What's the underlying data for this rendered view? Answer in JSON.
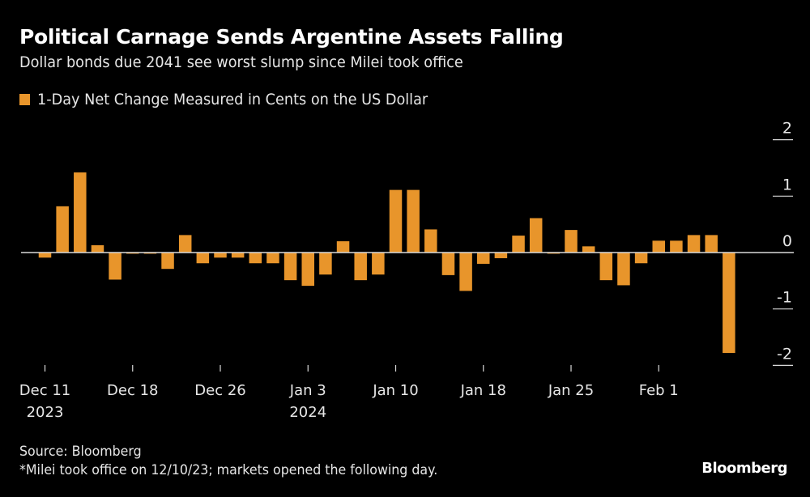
{
  "header": {
    "title": "Political Carnage Sends Argentine Assets Falling",
    "subtitle": "Dollar bonds due 2041 see worst slump since Milei took office"
  },
  "footer": {
    "source": "Source: Bloomberg",
    "note": "*Milei took office on 12/10/23; markets opened the following day.",
    "brand": "Bloomberg"
  },
  "colors": {
    "bar": "#e8952b",
    "background": "#000000",
    "axis": "#d9d9d9",
    "text": "#e6e6e6"
  },
  "chart_data": {
    "type": "bar",
    "title": "Political Carnage Sends Argentine Assets Falling",
    "subtitle": "Dollar bonds due 2041 see worst slump since Milei took office",
    "xlabel": "",
    "ylabel": "",
    "legend": {
      "position": "top-left",
      "entries": [
        "1-Day Net Change Measured in Cents on the US Dollar"
      ]
    },
    "ylim": [
      -2.2,
      2.2
    ],
    "yticks": [
      2,
      1,
      0,
      -1,
      -2
    ],
    "ytick_labels": [
      "2",
      "1",
      "0",
      "-1",
      "-2"
    ],
    "y_axis_side": "right",
    "grid": false,
    "xticks": [
      {
        "index": 0,
        "label": "Dec 11",
        "sublabel": "2023"
      },
      {
        "index": 5,
        "label": "Dec 18",
        "sublabel": ""
      },
      {
        "index": 10,
        "label": "Dec 26",
        "sublabel": ""
      },
      {
        "index": 15,
        "label": "Jan 3",
        "sublabel": "2024"
      },
      {
        "index": 20,
        "label": "Jan 10",
        "sublabel": ""
      },
      {
        "index": 25,
        "label": "Jan 18",
        "sublabel": ""
      },
      {
        "index": 30,
        "label": "Jan 25",
        "sublabel": ""
      },
      {
        "index": 35,
        "label": "Feb 1",
        "sublabel": ""
      }
    ],
    "series": [
      {
        "name": "1-Day Net Change Measured in Cents on the US Dollar",
        "values": [
          -0.09,
          0.82,
          1.42,
          0.13,
          -0.48,
          -0.02,
          -0.02,
          -0.29,
          0.31,
          -0.19,
          -0.09,
          -0.09,
          -0.19,
          -0.19,
          -0.49,
          -0.59,
          -0.39,
          0.2,
          -0.49,
          -0.39,
          1.11,
          1.11,
          0.41,
          -0.4,
          -0.68,
          -0.2,
          -0.1,
          0.3,
          0.61,
          -0.02,
          0.4,
          0.11,
          -0.49,
          -0.58,
          -0.19,
          0.21,
          0.21,
          0.31,
          0.31,
          -1.78
        ]
      }
    ]
  }
}
